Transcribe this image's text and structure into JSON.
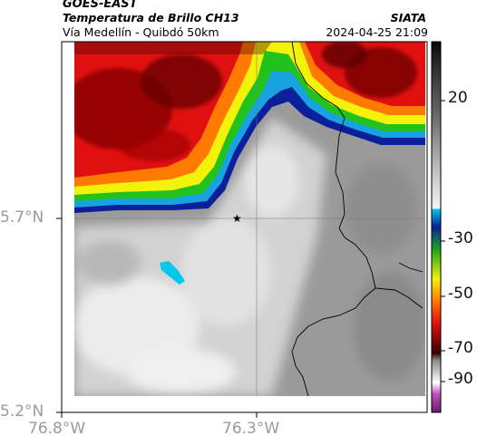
{
  "header": {
    "satellite": "GOES-EAST",
    "product": "Temperatura de Brillo CH13",
    "organization": "SIATA",
    "route": "Vía Medellín - Quibdó 50km",
    "datetime": "2024-04-25 21:09"
  },
  "axes": {
    "latitude_ticks": [
      "5.7°N",
      "5.2°N"
    ],
    "longitude_ticks": [
      "76.8°W",
      "76.3°W"
    ]
  },
  "colorbar": {
    "ticks": [
      "20",
      "-30",
      "-50",
      "-70",
      "-90"
    ],
    "colors": {
      "warm_top": "#0a0a0a",
      "gray_mid": "#bdbdbd",
      "cyan": "#00c0e0",
      "blue": "#0b1f9a",
      "green": "#22c21e",
      "yellow": "#f2f20a",
      "orange": "#ff7a00",
      "red": "#e01010",
      "dark_red": "#4a0000",
      "magenta": "#b040b0"
    }
  },
  "map": {
    "marker_icon": "star-icon",
    "colors": {
      "cloud_free": "#8a8a8a",
      "cloud_light": "#e4e4e4",
      "cold_top": "#c81414",
      "border": "#000000"
    }
  }
}
